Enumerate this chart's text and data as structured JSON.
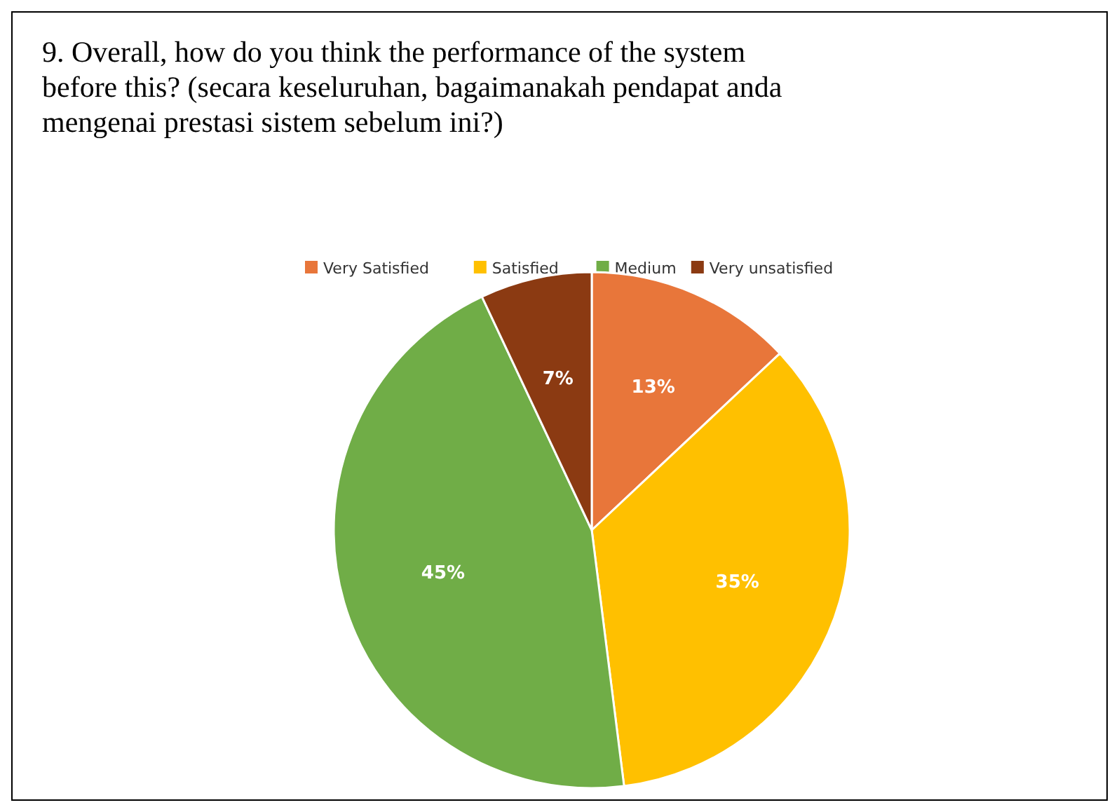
{
  "chart_data": {
    "type": "pie",
    "title": "9. Overall, how do you think the performance of the system before this? (secara keseluruhan, bagaimanakah pendapat anda mengenai prestasi sistem sebelum ini?)",
    "categories": [
      "Very Satisfied",
      "Satisfied",
      "Medium",
      "Very unsatisfied"
    ],
    "values": [
      13,
      35,
      45,
      7
    ],
    "colors": [
      "#e8763a",
      "#ffc000",
      "#70ad47",
      "#8b3a12"
    ],
    "value_labels": [
      "13%",
      "35%",
      "45%",
      "7%"
    ],
    "legend": "top"
  }
}
